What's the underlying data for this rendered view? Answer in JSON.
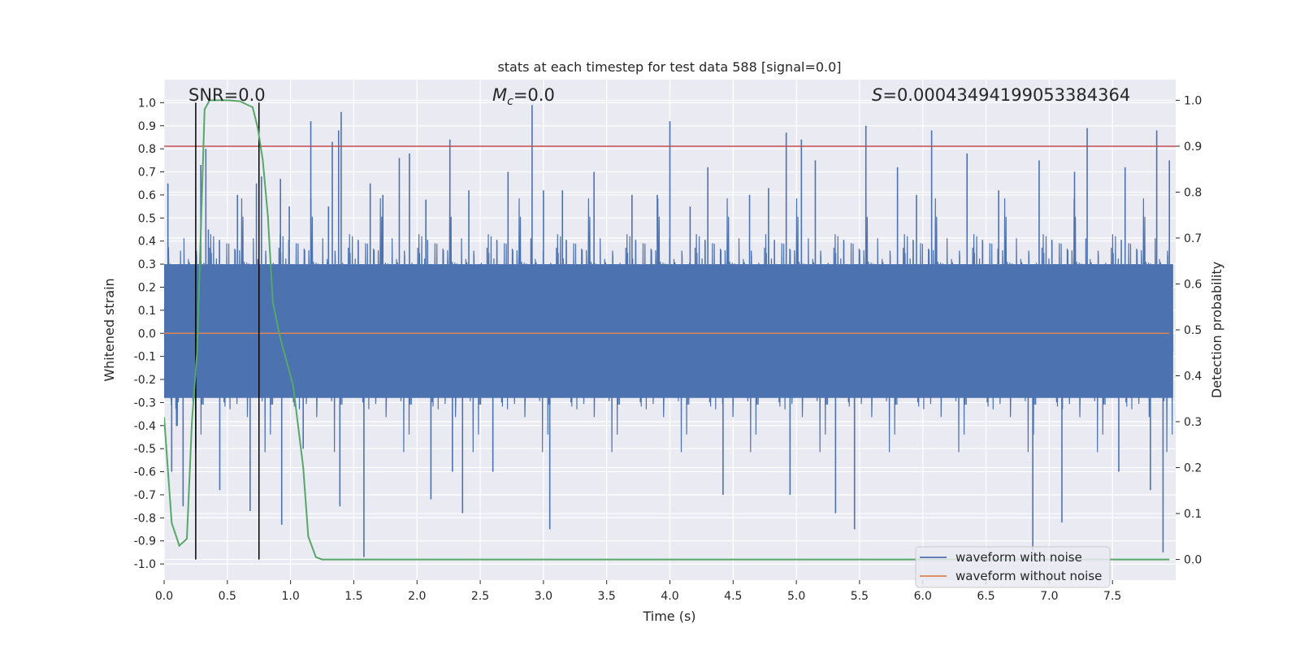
{
  "chart_data": {
    "type": "line",
    "title": "stats at each timestep for test data 588 [signal=0.0]",
    "xlabel": "Time (s)",
    "ylabel_left": "Whitened strain",
    "ylabel_right": "Detection probability",
    "xlim": [
      0.0,
      8.0
    ],
    "ylim_left": [
      -1.07,
      1.1
    ],
    "ylim_right": [
      -0.045,
      1.045
    ],
    "x_ticks": [
      0.0,
      0.5,
      1.0,
      1.5,
      2.0,
      2.5,
      3.0,
      3.5,
      4.0,
      4.5,
      5.0,
      5.5,
      6.0,
      6.5,
      7.0,
      7.5
    ],
    "x_tick_labels": [
      "0.0",
      "0.5",
      "1.0",
      "1.5",
      "2.0",
      "2.5",
      "3.0",
      "3.5",
      "4.0",
      "4.5",
      "5.0",
      "5.5",
      "6.0",
      "6.5",
      "7.0",
      "7.5"
    ],
    "y_left_ticks": [
      1.0,
      0.9,
      0.8,
      0.7,
      0.6,
      0.5,
      0.4,
      0.3,
      0.2,
      0.1,
      0.0,
      -0.1,
      -0.2,
      -0.3,
      -0.4,
      -0.5,
      -0.6,
      -0.7,
      -0.8,
      -0.9,
      -1.0
    ],
    "y_left_tick_labels": [
      "1.0",
      "0.9",
      "0.8",
      "0.7",
      "0.6",
      "0.5",
      "0.4",
      "0.3",
      "0.2",
      "0.1",
      "0.0",
      "-0.1",
      "-0.2",
      "-0.3",
      "-0.4",
      "-0.5",
      "-0.6",
      "-0.7",
      "-0.8",
      "-0.9",
      "-1.0"
    ],
    "y_right_ticks": [
      1.0,
      0.9,
      0.8,
      0.7,
      0.6,
      0.5,
      0.4,
      0.3,
      0.2,
      0.1,
      0.0
    ],
    "y_right_tick_labels": [
      "1.0",
      "0.9",
      "0.8",
      "0.7",
      "0.6",
      "0.5",
      "0.4",
      "0.3",
      "0.2",
      "0.1",
      "0.0"
    ],
    "grid": true,
    "annotations": {
      "snr": "SNR=0.0",
      "mc_symbol": "M",
      "mc_subscript": "c",
      "mc_value": "=0.0",
      "s_symbol": "S",
      "s_value": "=0.00043494199053384364"
    },
    "threshold": {
      "name": "detection threshold",
      "axis": "right",
      "value": 0.9,
      "color": "#c44e52"
    },
    "vertical_markers": {
      "x": [
        0.25,
        0.75
      ],
      "color": "#000000"
    },
    "series": [
      {
        "name": "waveform with noise",
        "axis": "left",
        "color": "#4c72b0",
        "description": "whitened noisy strain, dense noise mostly within about -0.5 to 0.5 with spikes to about 1.0 and -0.97",
        "spikes": [
          [
            0.03,
            0.65
          ],
          [
            0.06,
            -0.6
          ],
          [
            0.15,
            -0.75
          ],
          [
            0.25,
            -0.5
          ],
          [
            0.29,
            0.73
          ],
          [
            0.33,
            0.8
          ],
          [
            0.35,
            0.45
          ],
          [
            0.44,
            -0.68
          ],
          [
            0.58,
            0.6
          ],
          [
            0.68,
            -0.77
          ],
          [
            0.73,
            0.65
          ],
          [
            0.77,
            0.68
          ],
          [
            0.92,
            0.67
          ],
          [
            0.93,
            -0.83
          ],
          [
            0.99,
            0.55
          ],
          [
            1.1,
            -0.5
          ],
          [
            1.16,
            0.92
          ],
          [
            1.3,
            0.55
          ],
          [
            1.33,
            0.83
          ],
          [
            1.38,
            0.88
          ],
          [
            1.39,
            -0.75
          ],
          [
            1.4,
            0.96
          ],
          [
            1.58,
            -0.97
          ],
          [
            1.63,
            0.65
          ],
          [
            1.73,
            0.6
          ],
          [
            1.86,
            0.76
          ],
          [
            1.94,
            0.78
          ],
          [
            2.07,
            0.58
          ],
          [
            2.11,
            -0.72
          ],
          [
            2.26,
            0.84
          ],
          [
            2.28,
            -0.6
          ],
          [
            2.36,
            -0.78
          ],
          [
            2.41,
            0.62
          ],
          [
            2.6,
            -0.6
          ],
          [
            2.72,
            0.7
          ],
          [
            2.91,
            0.99
          ],
          [
            3.0,
            0.62
          ],
          [
            3.05,
            -0.85
          ],
          [
            3.15,
            0.62
          ],
          [
            3.4,
            0.7
          ],
          [
            3.7,
            0.6
          ],
          [
            3.9,
            0.6
          ],
          [
            4.0,
            0.92
          ],
          [
            4.16,
            0.55
          ],
          [
            4.3,
            0.72
          ],
          [
            4.42,
            -0.7
          ],
          [
            4.63,
            0.6
          ],
          [
            4.78,
            0.63
          ],
          [
            4.92,
            0.87
          ],
          [
            4.95,
            -0.7
          ],
          [
            5.04,
            0.84
          ],
          [
            5.15,
            0.75
          ],
          [
            5.31,
            -0.78
          ],
          [
            5.46,
            -0.85
          ],
          [
            5.55,
            0.9
          ],
          [
            5.8,
            0.72
          ],
          [
            5.95,
            0.6
          ],
          [
            6.07,
            0.88
          ],
          [
            6.35,
            0.78
          ],
          [
            6.6,
            0.62
          ],
          [
            6.87,
            -0.94
          ],
          [
            6.92,
            0.75
          ],
          [
            7.1,
            -0.82
          ],
          [
            7.2,
            0.7
          ],
          [
            7.3,
            0.89
          ],
          [
            7.55,
            -0.6
          ],
          [
            7.6,
            0.72
          ],
          [
            7.8,
            -0.68
          ],
          [
            7.85,
            0.88
          ],
          [
            7.9,
            -0.95
          ],
          [
            7.95,
            0.75
          ]
        ]
      },
      {
        "name": "waveform without noise",
        "axis": "left",
        "color": "#dd8452",
        "x": [
          0.0,
          7.95
        ],
        "y": [
          0.0,
          0.0
        ]
      },
      {
        "name": "detection probability",
        "axis": "right",
        "color": "#55a868",
        "x": [
          0.0,
          0.06,
          0.12,
          0.18,
          0.22,
          0.26,
          0.3,
          0.32,
          0.36,
          0.42,
          0.5,
          0.6,
          0.66,
          0.7,
          0.74,
          0.78,
          0.82,
          0.86,
          0.92,
          0.98,
          1.02,
          1.06,
          1.1,
          1.14,
          1.2,
          1.25,
          1.35,
          1.5,
          2.0,
          3.0,
          4.0,
          5.0,
          6.0,
          7.0,
          7.95
        ],
        "y": [
          0.31,
          0.08,
          0.03,
          0.045,
          0.3,
          0.45,
          0.8,
          0.98,
          1.0,
          1.0,
          1.0,
          0.998,
          0.99,
          0.985,
          0.94,
          0.87,
          0.75,
          0.56,
          0.48,
          0.42,
          0.38,
          0.29,
          0.2,
          0.05,
          0.005,
          0.0,
          0.0,
          0.0,
          0.0,
          0.0,
          0.0,
          0.0,
          0.0,
          0.0,
          0.0
        ]
      }
    ],
    "legend": {
      "location": "lower-right",
      "entries": [
        {
          "label": "waveform with noise",
          "color": "#4c72b0"
        },
        {
          "label": "waveform without noise",
          "color": "#dd8452"
        }
      ]
    }
  }
}
